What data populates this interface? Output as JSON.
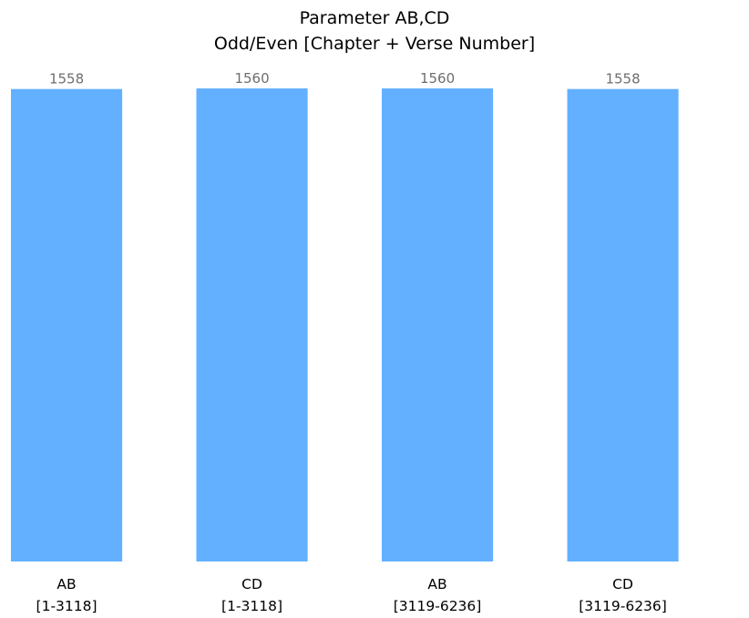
{
  "chart_data": {
    "type": "bar",
    "title": "Parameter AB,CD",
    "subtitle": "Odd/Even [Chapter + Verse Number]",
    "xlabel": "",
    "ylabel": "",
    "categories": [
      {
        "label": "AB",
        "range": "[1-3118]"
      },
      {
        "label": "CD",
        "range": "[1-3118]"
      },
      {
        "label": "AB",
        "range": "[3119-6236]"
      },
      {
        "label": "CD",
        "range": "[3119-6236]"
      }
    ],
    "values": [
      1558,
      1560,
      1560,
      1558
    ],
    "value_labels": [
      "1558",
      "1560",
      "1560",
      "1558"
    ],
    "ylim": [
      0,
      1560
    ],
    "grid": false,
    "axes_visible": false,
    "legend": "none",
    "colors": {
      "bar": "#62b0ff",
      "value_label": "#6e6e6e",
      "tick_label": "#000000",
      "title": "#000000"
    }
  }
}
